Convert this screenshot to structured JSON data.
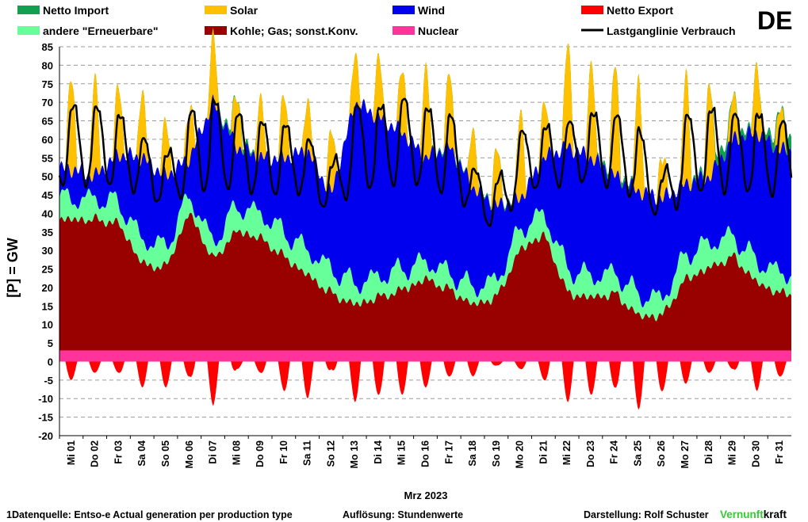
{
  "country": "DE",
  "legend": [
    {
      "key": "import",
      "label": "Netto Import",
      "color": "#10a050",
      "kind": "box"
    },
    {
      "key": "solar",
      "label": "Solar",
      "color": "#ffc000",
      "kind": "box"
    },
    {
      "key": "wind",
      "label": "Wind",
      "color": "#0000ee",
      "kind": "box"
    },
    {
      "key": "export",
      "label": "Netto Export",
      "color": "#ff0000",
      "kind": "box"
    },
    {
      "key": "renew",
      "label": "andere \"Erneuerbare\"",
      "color": "#66ff99",
      "kind": "box"
    },
    {
      "key": "fossil",
      "label": "Kohle; Gas; sonst.Konv.",
      "color": "#990000",
      "kind": "box"
    },
    {
      "key": "nuclear",
      "label": "Nuclear",
      "color": "#ff3399",
      "kind": "box"
    },
    {
      "key": "load",
      "label": "Lastganglinie Verbrauch",
      "color": "#000000",
      "kind": "line"
    }
  ],
  "footer": {
    "source": "1Datenquelle: Entso-e  Actual generation per production type",
    "resolution": "Auflösung: Stundenwerte",
    "author": "Darstellung:  Rolf Schuster",
    "brand_a": "Vernunft",
    "brand_b": "kraft",
    "brand_a_color": "#33cc33"
  },
  "chart_data": {
    "type": "area",
    "title": "DE",
    "ylabel": "[P]  =  GW",
    "xlabel": "Mrz 2023",
    "ylim": [
      -20,
      85
    ],
    "yticks": [
      -20,
      -15,
      -10,
      -5,
      0,
      5,
      10,
      15,
      20,
      25,
      30,
      35,
      40,
      45,
      50,
      55,
      60,
      65,
      70,
      75,
      80,
      85
    ],
    "grid": true,
    "legend_position": "top",
    "x": [
      "Mi 01",
      "Do 02",
      "Fr 03",
      "Sa 04",
      "So 05",
      "Mo 06",
      "Di 07",
      "Mi 08",
      "Do 09",
      "Fr 10",
      "Sa 11",
      "So 12",
      "Mo 13",
      "Di 14",
      "Mi 15",
      "Do 16",
      "Fr 17",
      "Sa 18",
      "So 19",
      "Mo 20",
      "Di 21",
      "Mi 22",
      "Do 23",
      "Fr 24",
      "Sa 25",
      "So 26",
      "Mo 27",
      "Di 28",
      "Mi 29",
      "Do 30",
      "Fr 31"
    ],
    "daily_estimates_gw": {
      "nuclear": [
        3,
        3,
        3,
        3,
        3,
        3,
        3,
        3,
        3,
        3,
        3,
        3,
        3,
        3,
        3,
        3,
        3,
        3,
        3,
        3,
        3,
        3,
        3,
        3,
        3,
        3,
        3,
        3,
        3,
        3,
        3
      ],
      "fossil": [
        38,
        38,
        37,
        26,
        25,
        40,
        27,
        35,
        33,
        28,
        23,
        18,
        15,
        17,
        19,
        22,
        19,
        15,
        17,
        30,
        34,
        18,
        17,
        18,
        12,
        12,
        22,
        25,
        28,
        21,
        18
      ],
      "other_renewables": [
        44,
        44,
        43,
        33,
        31,
        45,
        32,
        42,
        40,
        35,
        30,
        25,
        21,
        23,
        25,
        27,
        24,
        20,
        22,
        36,
        40,
        25,
        23,
        24,
        18,
        17,
        29,
        32,
        34,
        27,
        24
      ],
      "wind": [
        52,
        50,
        56,
        55,
        50,
        55,
        70,
        58,
        55,
        55,
        57,
        45,
        70,
        66,
        62,
        55,
        58,
        47,
        42,
        44,
        55,
        58,
        55,
        50,
        46,
        44,
        48,
        50,
        60,
        62,
        57
      ],
      "solar": [
        72,
        70,
        69,
        67,
        58,
        63,
        82,
        66,
        65,
        66,
        65,
        55,
        78,
        76,
        73,
        74,
        72,
        57,
        51,
        62,
        64,
        80,
        75,
        74,
        71,
        48,
        72,
        70,
        65,
        75,
        62
      ],
      "net_import": [
        0,
        0,
        0,
        0,
        0,
        0,
        0,
        2,
        0,
        0,
        0,
        0,
        0,
        0,
        0,
        0,
        1,
        0,
        1,
        0,
        0,
        0,
        0,
        2,
        0,
        0,
        0,
        2,
        3,
        0,
        4
      ],
      "net_export": [
        -5,
        -3,
        -3,
        -7,
        -7,
        -4,
        -12,
        -2,
        -3,
        -8,
        -10,
        -2,
        -11,
        -9,
        -9,
        -7,
        -4,
        -4,
        -1,
        -2,
        -5,
        -11,
        -9,
        -7,
        -13,
        -8,
        -6,
        -3,
        -2,
        -8,
        -4
      ],
      "load_peak": [
        69,
        68,
        67,
        60,
        55,
        67,
        70,
        67,
        64,
        64,
        60,
        52,
        69,
        68,
        71,
        68,
        67,
        52,
        48,
        62,
        63,
        64,
        67,
        66,
        63,
        49,
        66,
        68,
        66,
        67,
        64
      ],
      "load_min": [
        47,
        48,
        47,
        45,
        42,
        45,
        47,
        46,
        45,
        45,
        45,
        40,
        46,
        47,
        48,
        47,
        45,
        40,
        35,
        45,
        47,
        48,
        48,
        47,
        43,
        38,
        44,
        46,
        46,
        45,
        45
      ]
    }
  }
}
